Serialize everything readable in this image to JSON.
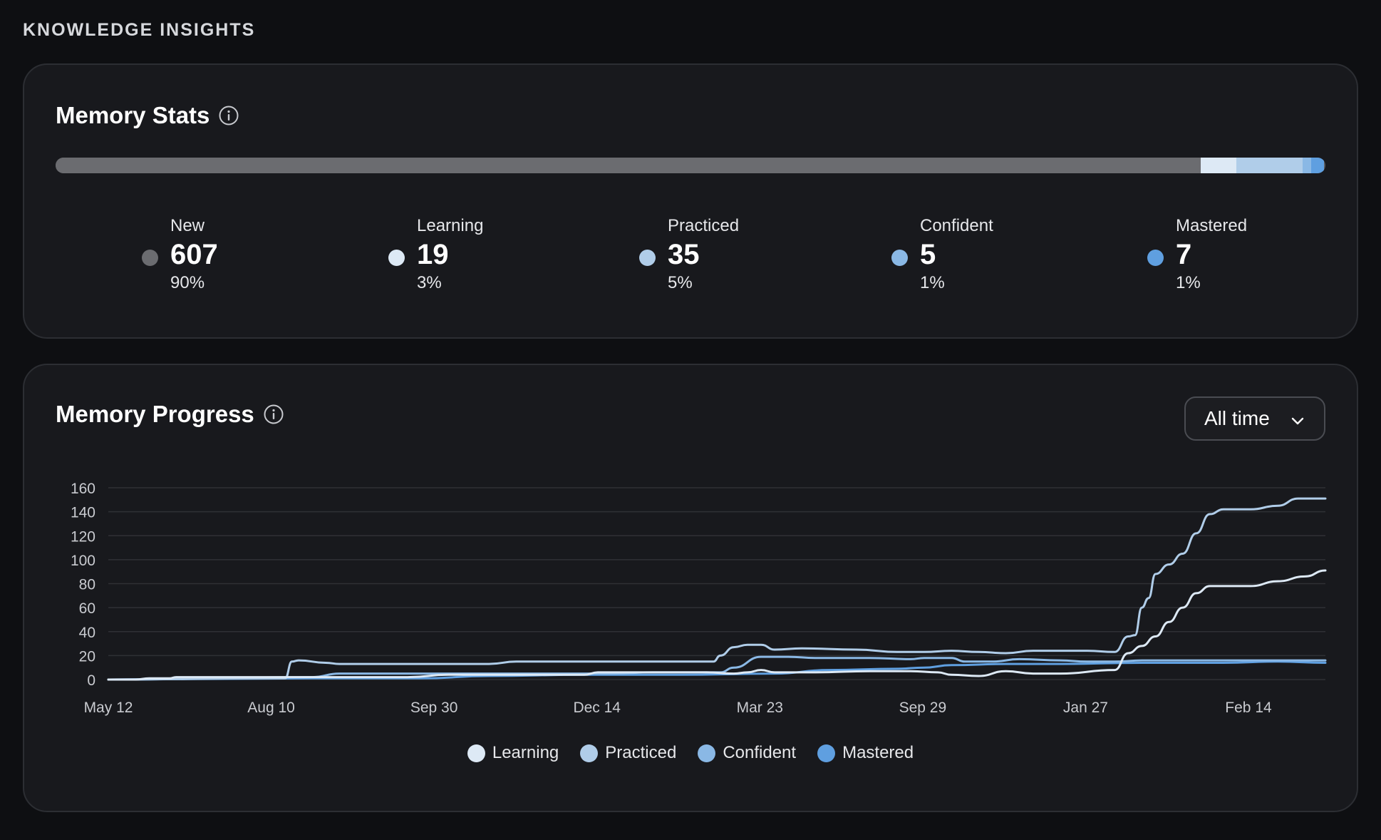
{
  "header": {
    "title": "KNOWLEDGE INSIGHTS"
  },
  "colors": {
    "new": "#6b6c70",
    "learning": "#dde9f5",
    "practiced": "#b0cde9",
    "confident": "#8ab8e5",
    "mastered": "#5f9fe0"
  },
  "memory_stats": {
    "title": "Memory Stats",
    "info_icon": "info-icon",
    "items": [
      {
        "key": "new",
        "label": "New",
        "count": "607",
        "percent": "90%",
        "fraction": 0.902
      },
      {
        "key": "learning",
        "label": "Learning",
        "count": "19",
        "percent": "3%",
        "fraction": 0.028
      },
      {
        "key": "practiced",
        "label": "Practiced",
        "count": "35",
        "percent": "5%",
        "fraction": 0.052
      },
      {
        "key": "confident",
        "label": "Confident",
        "count": "5",
        "percent": "1%",
        "fraction": 0.007
      },
      {
        "key": "mastered",
        "label": "Mastered",
        "count": "7",
        "percent": "1%",
        "fraction": 0.01
      }
    ]
  },
  "memory_progress": {
    "title": "Memory Progress",
    "info_icon": "info-icon",
    "range_select": {
      "value": "All time",
      "icon": "chevron-down-icon"
    }
  },
  "chart_data": {
    "type": "line",
    "title": "",
    "xlabel": "",
    "ylabel": "",
    "ylim": [
      0,
      160
    ],
    "yticks": [
      0,
      20,
      40,
      60,
      80,
      100,
      120,
      140,
      160
    ],
    "xticks": [
      "May 12",
      "Aug 10",
      "Sep 30",
      "Dec 14",
      "Mar 23",
      "Sep 29",
      "Jan 27",
      "Feb 14"
    ],
    "grid": true,
    "legend_position": "bottom",
    "series": [
      {
        "name": "Learning",
        "color": "#dde9f5",
        "points": [
          [
            0,
            0
          ],
          [
            0.2,
            0
          ],
          [
            0.3,
            1
          ],
          [
            0.45,
            1
          ],
          [
            0.5,
            2
          ],
          [
            0.9,
            2
          ],
          [
            1.2,
            2
          ],
          [
            1.5,
            2
          ],
          [
            2.2,
            2
          ],
          [
            2.5,
            4
          ],
          [
            3.5,
            4
          ],
          [
            3.6,
            6
          ],
          [
            4.4,
            6
          ],
          [
            4.6,
            5
          ],
          [
            4.7,
            6
          ],
          [
            4.8,
            8
          ],
          [
            4.9,
            6
          ],
          [
            5.2,
            6
          ],
          [
            5.6,
            7
          ],
          [
            5.9,
            7
          ],
          [
            6.1,
            6
          ],
          [
            6.2,
            4
          ],
          [
            6.4,
            3
          ],
          [
            6.6,
            7
          ],
          [
            6.8,
            5
          ],
          [
            7.0,
            5
          ],
          [
            7.4,
            8
          ],
          [
            7.5,
            22
          ],
          [
            7.6,
            28
          ],
          [
            7.7,
            36
          ],
          [
            7.8,
            48
          ],
          [
            7.9,
            60
          ],
          [
            8.0,
            72
          ],
          [
            8.1,
            78
          ],
          [
            8.4,
            78
          ],
          [
            8.6,
            82
          ],
          [
            8.8,
            86
          ],
          [
            8.95,
            91
          ]
        ]
      },
      {
        "name": "Practiced",
        "color": "#b0cde9",
        "points": [
          [
            0,
            0
          ],
          [
            1.2,
            1
          ],
          [
            1.3,
            1
          ],
          [
            1.35,
            15
          ],
          [
            1.4,
            16
          ],
          [
            1.6,
            14
          ],
          [
            1.7,
            13
          ],
          [
            2.4,
            13
          ],
          [
            2.8,
            13
          ],
          [
            3.0,
            15
          ],
          [
            3.6,
            15
          ],
          [
            4.0,
            15
          ],
          [
            4.3,
            15
          ],
          [
            4.45,
            15
          ],
          [
            4.5,
            20
          ],
          [
            4.6,
            27
          ],
          [
            4.7,
            29
          ],
          [
            4.8,
            29
          ],
          [
            4.9,
            25
          ],
          [
            5.1,
            26
          ],
          [
            5.5,
            25
          ],
          [
            5.8,
            23
          ],
          [
            6.0,
            23
          ],
          [
            6.2,
            24
          ],
          [
            6.4,
            23
          ],
          [
            6.6,
            22
          ],
          [
            6.8,
            24
          ],
          [
            7.2,
            24
          ],
          [
            7.4,
            23
          ],
          [
            7.5,
            36
          ],
          [
            7.55,
            37
          ],
          [
            7.6,
            60
          ],
          [
            7.65,
            68
          ],
          [
            7.7,
            88
          ],
          [
            7.8,
            96
          ],
          [
            7.9,
            105
          ],
          [
            8.0,
            122
          ],
          [
            8.1,
            138
          ],
          [
            8.2,
            142
          ],
          [
            8.4,
            142
          ],
          [
            8.6,
            145
          ],
          [
            8.75,
            151
          ],
          [
            8.95,
            151
          ]
        ]
      },
      {
        "name": "Confident",
        "color": "#8ab8e5",
        "points": [
          [
            0,
            0
          ],
          [
            1.5,
            2
          ],
          [
            1.7,
            5
          ],
          [
            2.2,
            5
          ],
          [
            3.0,
            5
          ],
          [
            3.7,
            5
          ],
          [
            4.0,
            6
          ],
          [
            4.4,
            6
          ],
          [
            4.5,
            6
          ],
          [
            4.6,
            10
          ],
          [
            4.8,
            19
          ],
          [
            5.0,
            19
          ],
          [
            5.2,
            18
          ],
          [
            5.6,
            18
          ],
          [
            5.9,
            17
          ],
          [
            6.0,
            18
          ],
          [
            6.2,
            18
          ],
          [
            6.3,
            15
          ],
          [
            6.5,
            15
          ],
          [
            6.7,
            17
          ],
          [
            7.0,
            16
          ],
          [
            7.2,
            15
          ],
          [
            7.4,
            15
          ],
          [
            7.6,
            16
          ],
          [
            8.0,
            16
          ],
          [
            8.5,
            16
          ],
          [
            8.95,
            16
          ]
        ]
      },
      {
        "name": "Mastered",
        "color": "#5f9fe0",
        "points": [
          [
            0,
            0
          ],
          [
            1.5,
            1
          ],
          [
            2.3,
            1
          ],
          [
            2.8,
            3
          ],
          [
            3.5,
            4
          ],
          [
            4.2,
            4
          ],
          [
            4.9,
            5
          ],
          [
            5.3,
            8
          ],
          [
            5.8,
            9
          ],
          [
            6.0,
            10
          ],
          [
            6.2,
            12
          ],
          [
            6.6,
            13
          ],
          [
            7.0,
            13
          ],
          [
            7.6,
            14
          ],
          [
            8.2,
            14
          ],
          [
            8.6,
            15
          ],
          [
            8.95,
            14
          ]
        ]
      }
    ]
  }
}
